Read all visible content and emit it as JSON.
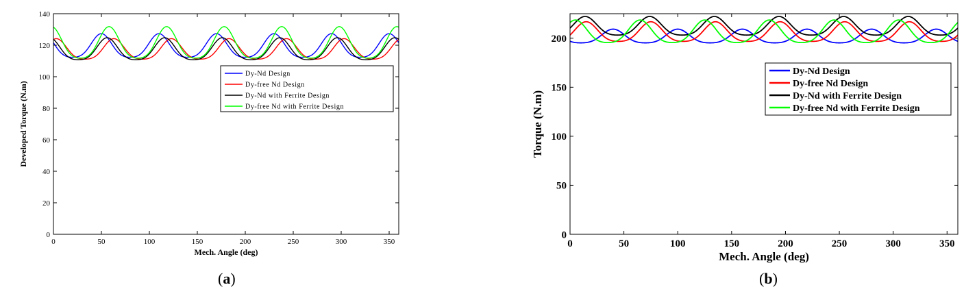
{
  "chart_data": [
    {
      "type": "line",
      "subfigure_label": "a",
      "title": "",
      "xlabel": "Mech. Angle (deg)",
      "ylabel": "Developed Torque (N.m)",
      "xlim": [
        0,
        360
      ],
      "ylim": [
        0,
        140
      ],
      "xticks": [
        0,
        50,
        100,
        150,
        200,
        250,
        300,
        350
      ],
      "yticks": [
        0,
        20,
        40,
        60,
        80,
        100,
        120,
        140
      ],
      "grid": false,
      "legend_position": "top-right",
      "series": [
        {
          "name": "Dy-Nd Design",
          "color": "#0000ff",
          "mean": 118.5,
          "amp": 7.5,
          "period": 60,
          "peak_x": 50
        },
        {
          "name": "Dy-free Nd Design",
          "color": "#ff0000",
          "mean": 116.5,
          "amp": 6.5,
          "period": 60,
          "peak_x": 3
        },
        {
          "name": "Dy-Nd with Ferrite Design",
          "color": "#000000",
          "mean": 116.5,
          "amp": 7.0,
          "period": 60,
          "peak_x": 56
        },
        {
          "name": "Dy-free Nd with Ferrite Design",
          "color": "#00ff00",
          "mean": 120.0,
          "amp": 10.0,
          "period": 60,
          "peak_x": 58
        }
      ]
    },
    {
      "type": "line",
      "subfigure_label": "b",
      "title": "",
      "xlabel": "Mech. Angle (deg)",
      "ylabel": "Torque (N.m)",
      "xlim": [
        0,
        360
      ],
      "ylim": [
        0,
        225
      ],
      "xticks": [
        0,
        50,
        100,
        150,
        200,
        250,
        300,
        350
      ],
      "yticks": [
        0,
        50,
        100,
        150,
        200
      ],
      "grid": false,
      "legend_position": "top-right",
      "series": [
        {
          "name": "Dy-Nd Design",
          "color": "#0000ff",
          "mean": 201.0,
          "amp": 7.0,
          "period": 60,
          "peak_x": 40
        },
        {
          "name": "Dy-free Nd Design",
          "color": "#ff0000",
          "mean": 205.0,
          "amp": 10.0,
          "period": 60,
          "peak_x": 15
        },
        {
          "name": "Dy-Nd with Ferrite Design",
          "color": "#000000",
          "mean": 211.0,
          "amp": 9.5,
          "period": 60,
          "peak_x": 14
        },
        {
          "name": "Dy-free Nd with Ferrite Design",
          "color": "#00ff00",
          "mean": 205.0,
          "amp": 11.5,
          "period": 60,
          "peak_x": 5
        }
      ]
    }
  ]
}
